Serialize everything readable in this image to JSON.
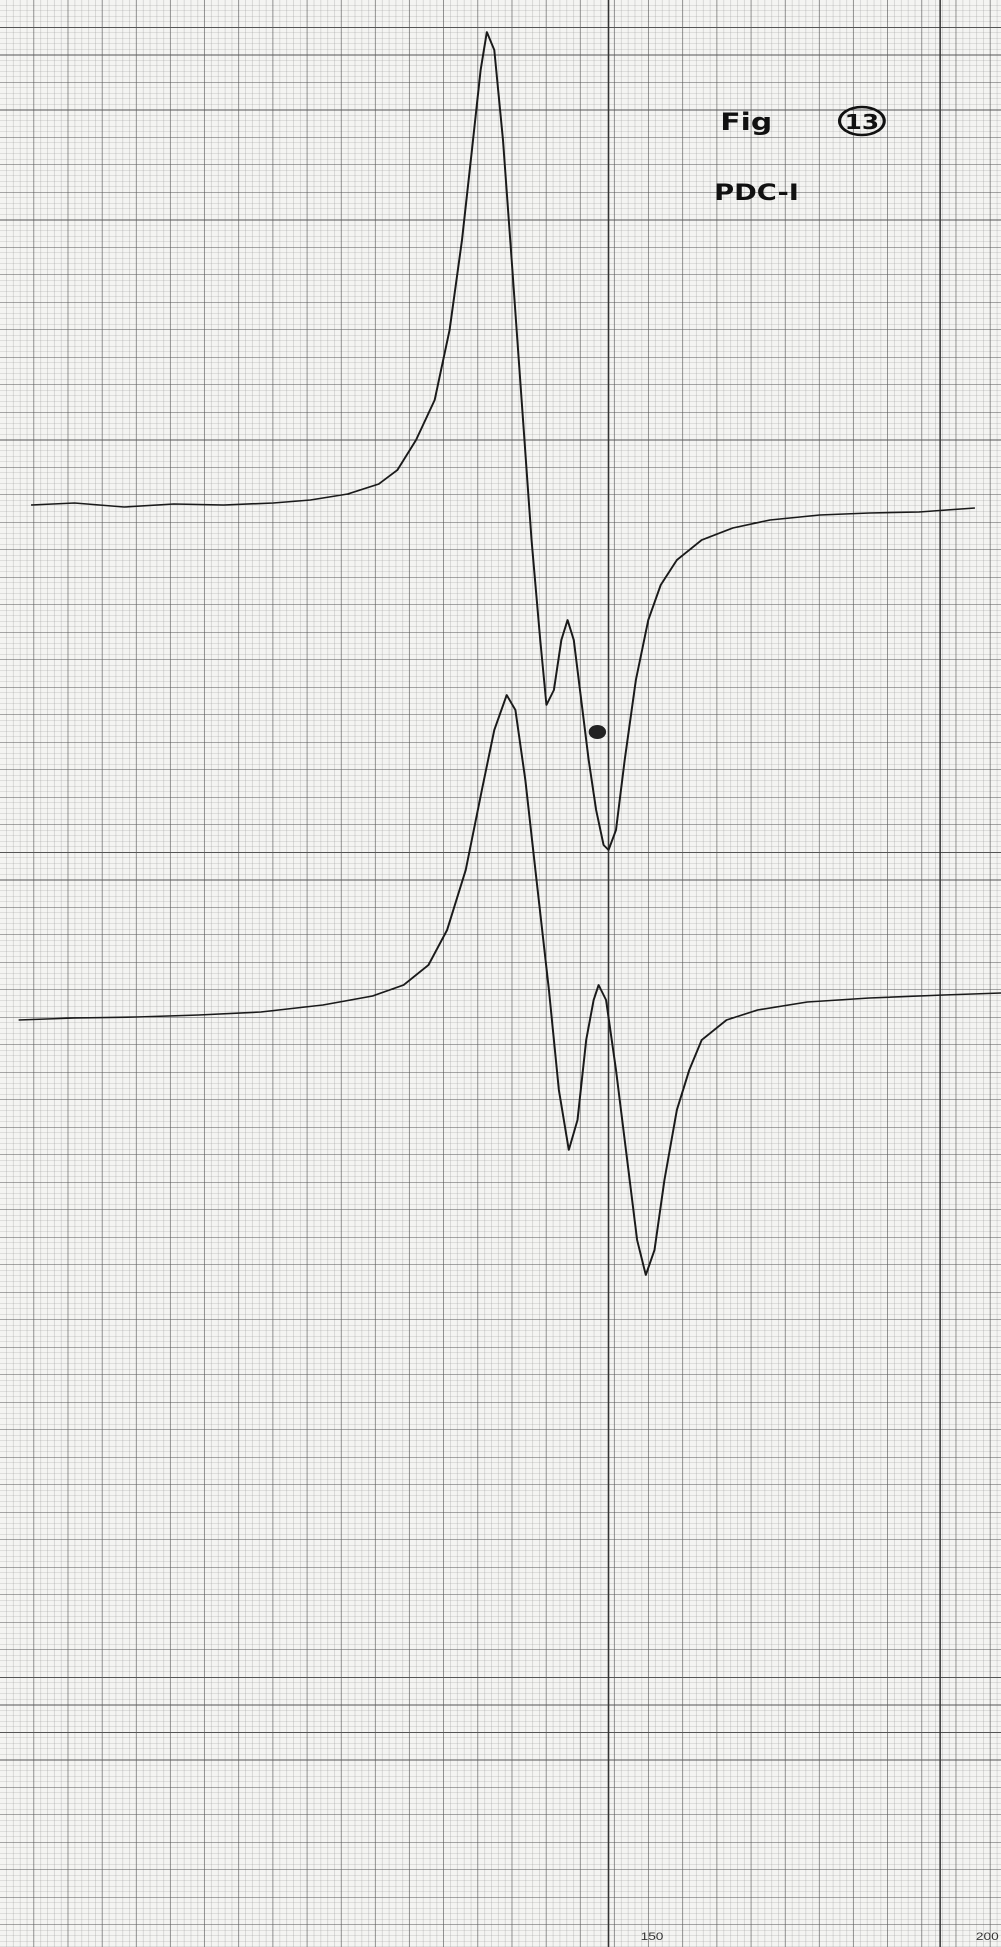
{
  "annotations": {
    "figure_label": "Fig",
    "figure_number": "13",
    "sample": "PDC-I"
  },
  "axis": {
    "ticks": [
      "150",
      "200"
    ]
  }
}
